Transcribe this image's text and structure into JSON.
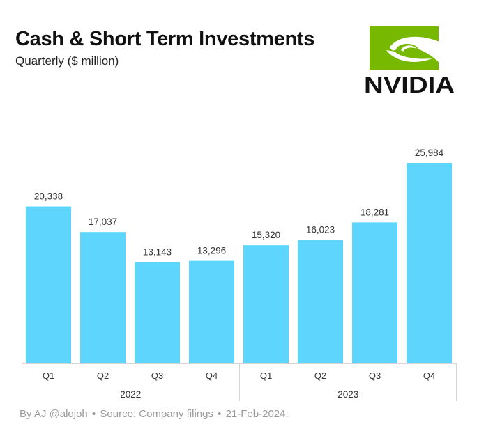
{
  "header": {
    "title": "Cash & Short Term Investments",
    "subtitle": "Quarterly ($ million)"
  },
  "logo": {
    "text": "NVIDIA",
    "icon": "nvidia-eye-icon",
    "green": "#76b900"
  },
  "footer": {
    "author": "By AJ @alojoh",
    "separator": "•",
    "source": "Source: Company filings",
    "date": "21-Feb-2024."
  },
  "chart_data": {
    "type": "bar",
    "title": "Cash & Short Term Investments",
    "subtitle": "Quarterly ($ million)",
    "xlabel": "",
    "ylabel": "",
    "ylim": [
      0,
      26000
    ],
    "grid": false,
    "bar_color": "#5dd5fc",
    "groups": [
      {
        "label": "2022",
        "categories": [
          "Q1",
          "Q2",
          "Q3",
          "Q4"
        ],
        "values": [
          20338,
          17037,
          13143,
          13296
        ]
      },
      {
        "label": "2023",
        "categories": [
          "Q1",
          "Q2",
          "Q3",
          "Q4"
        ],
        "values": [
          15320,
          16023,
          18281,
          25984
        ]
      }
    ],
    "value_labels": [
      "20,338",
      "17,037",
      "13,143",
      "13,296",
      "15,320",
      "16,023",
      "18,281",
      "25,984"
    ]
  }
}
